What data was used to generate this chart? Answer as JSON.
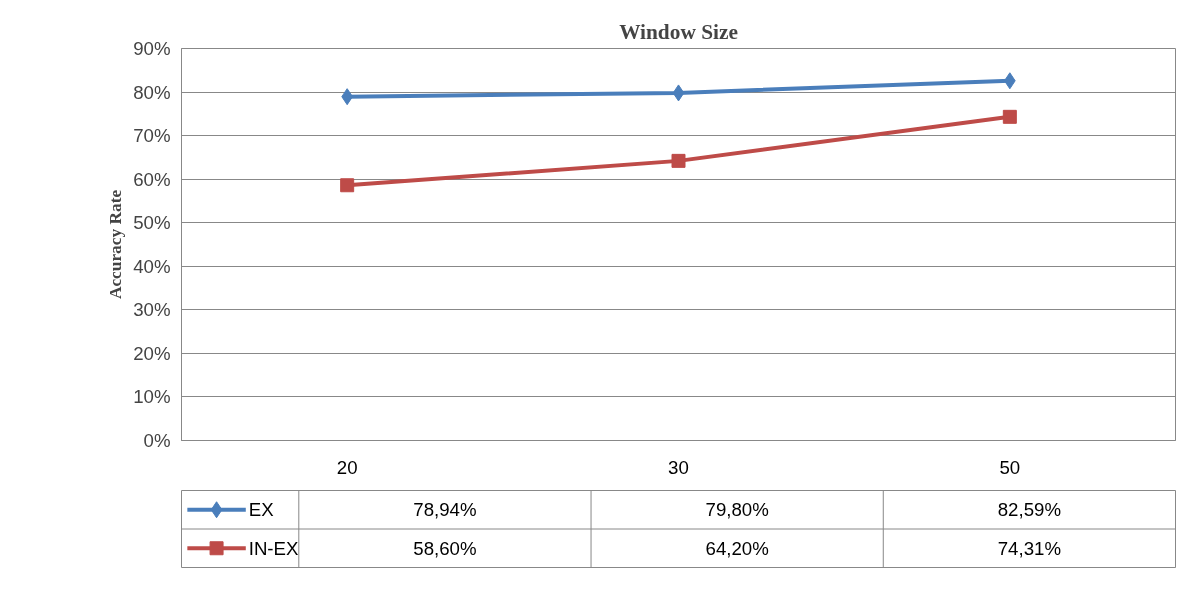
{
  "chart_data": {
    "type": "line",
    "title": "Window Size",
    "ylabel": "Accuracy Rate",
    "categories": [
      "20",
      "30",
      "50"
    ],
    "series": [
      {
        "name": "EX",
        "color": "#4a7ebb",
        "marker": "diamond",
        "values": [
          78.94,
          79.8,
          82.59
        ],
        "value_labels": [
          "78,94%",
          "79,80%",
          "82,59%"
        ]
      },
      {
        "name": "IN-EX",
        "color": "#be4b48",
        "marker": "square",
        "values": [
          58.6,
          64.2,
          74.31
        ],
        "value_labels": [
          "58,60%",
          "64,20%",
          "74,31%"
        ]
      }
    ],
    "ylim": [
      0,
      90
    ],
    "yticks": [
      {
        "value": 0,
        "label": "0%"
      },
      {
        "value": 10,
        "label": "10%"
      },
      {
        "value": 20,
        "label": "20%"
      },
      {
        "value": 30,
        "label": "30%"
      },
      {
        "value": 40,
        "label": "40%"
      },
      {
        "value": 50,
        "label": "50%"
      },
      {
        "value": 60,
        "label": "60%"
      },
      {
        "value": 70,
        "label": "70%"
      },
      {
        "value": 80,
        "label": "80%"
      },
      {
        "value": 90,
        "label": "90%"
      }
    ],
    "grid": "y",
    "legend": "bottom",
    "line_style": "solid"
  }
}
